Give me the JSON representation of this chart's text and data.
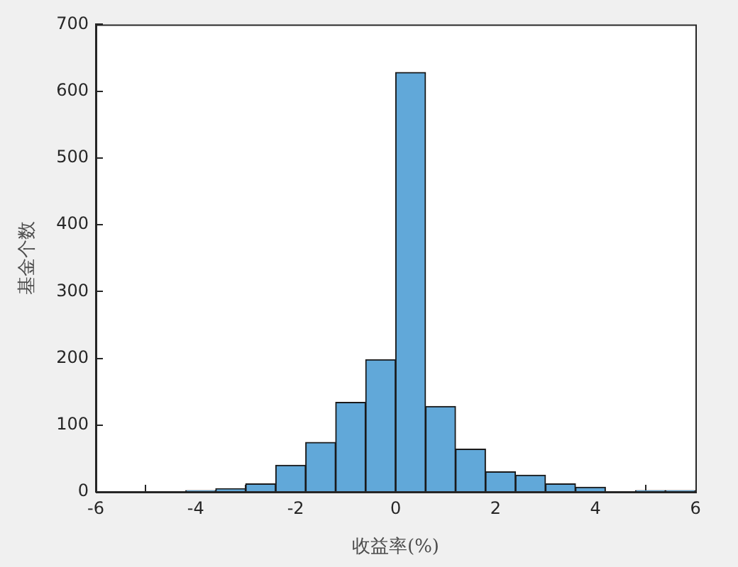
{
  "chart_data": {
    "type": "histogram",
    "xlabel": "收益率(%)",
    "ylabel": "基金个数",
    "bins": [
      -4.2,
      -3.6,
      -3.0,
      -2.4,
      -1.8,
      -1.2,
      -0.6,
      0,
      0.6,
      1.2,
      1.8,
      2.4,
      3.0,
      3.6,
      4.2,
      4.8,
      5.4,
      6.0
    ],
    "values": [
      2,
      5,
      12,
      40,
      74,
      134,
      198,
      628,
      128,
      64,
      30,
      25,
      12,
      7,
      0,
      2,
      2
    ],
    "color": "#61a8d9",
    "xlim": [
      -6,
      6
    ],
    "xticks": [
      -6,
      -4,
      -2,
      0,
      2,
      4,
      6
    ],
    "ylim": [
      0,
      700
    ],
    "yticks": [
      0,
      100,
      200,
      300,
      400,
      500,
      600,
      700
    ],
    "grid": false,
    "legend": false
  }
}
